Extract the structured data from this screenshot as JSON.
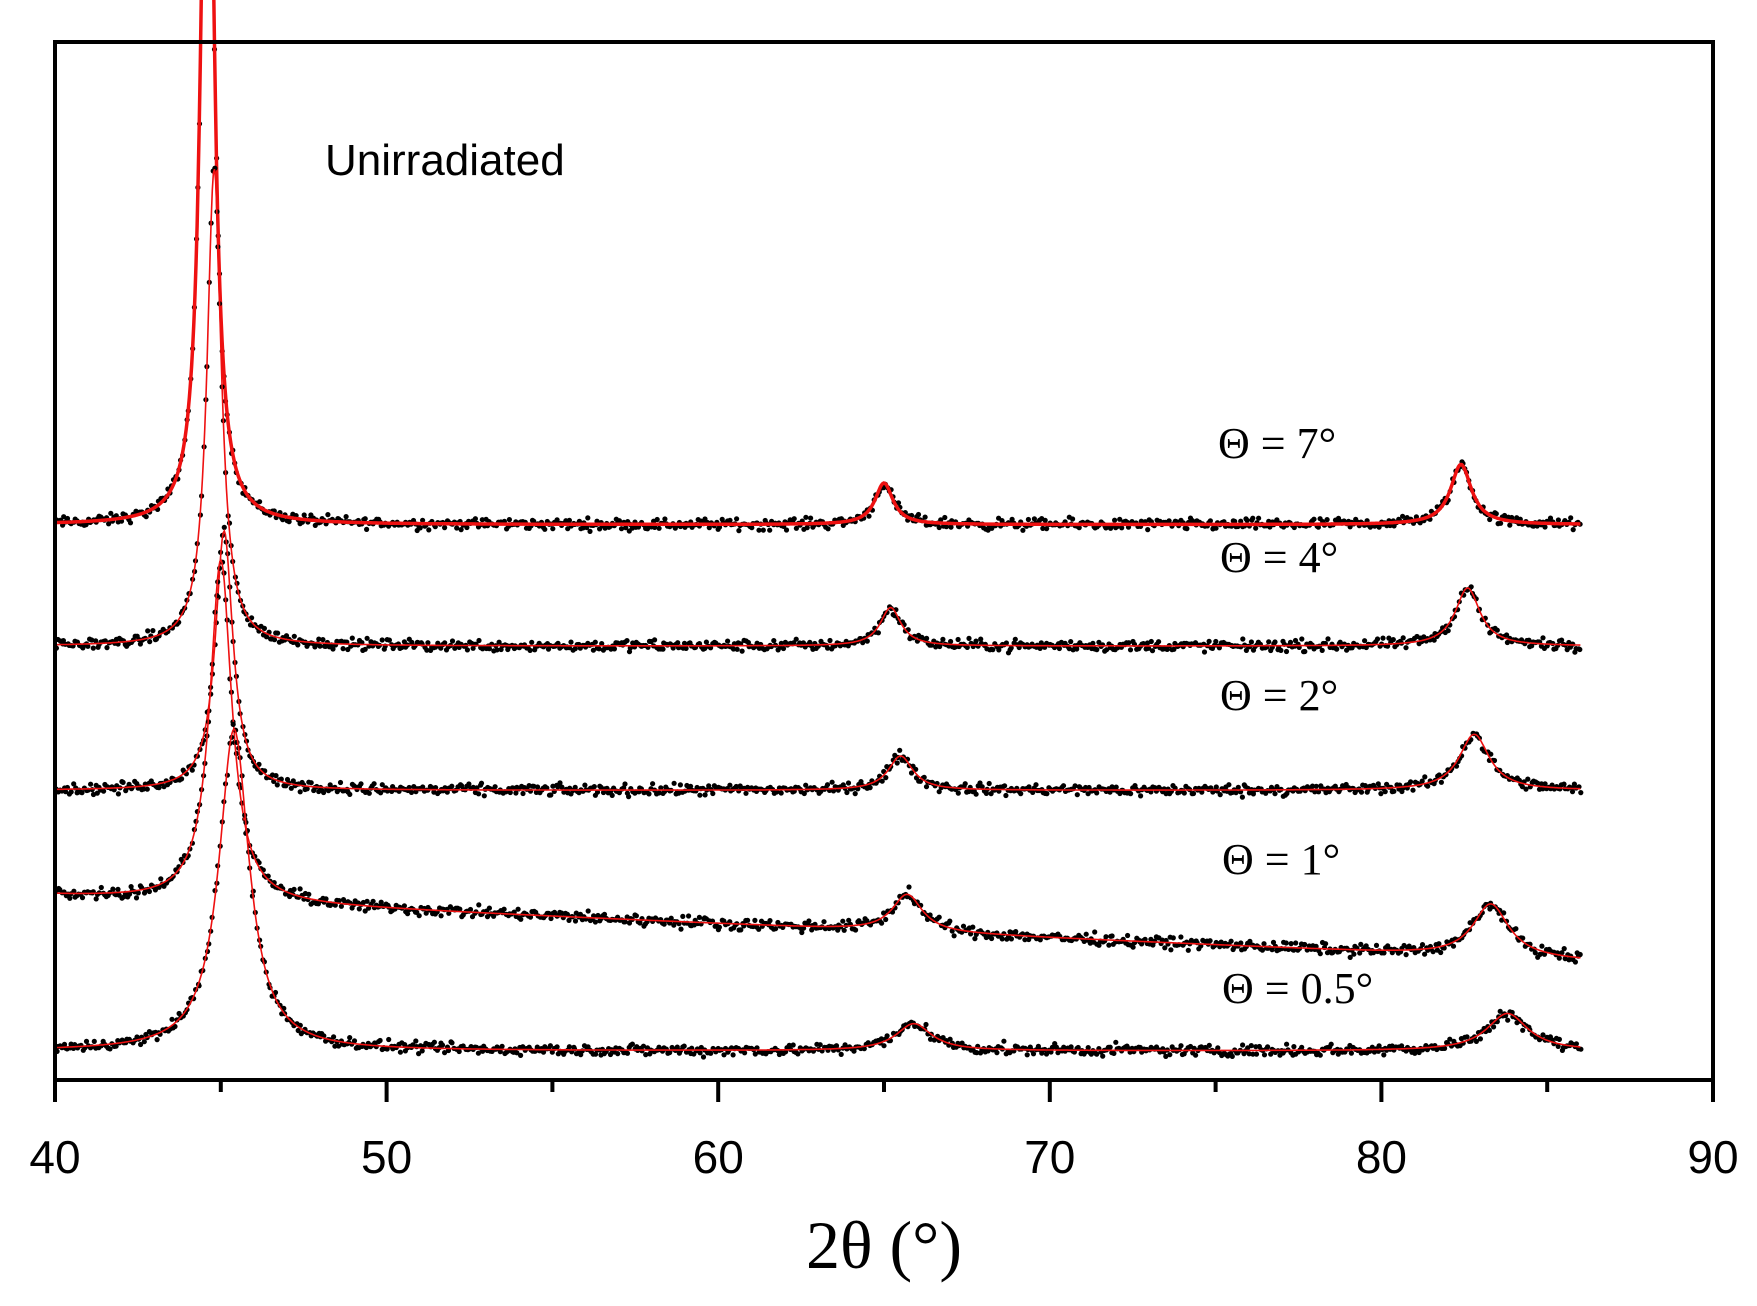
{
  "chart_data": {
    "type": "scatter",
    "title": "",
    "xlabel": "2θ (°)",
    "ylabel": "",
    "xlim": [
      40,
      90
    ],
    "x_ticks": [
      40,
      50,
      60,
      70,
      80,
      90
    ],
    "x_minor_ticks": [
      45,
      55,
      65,
      75,
      85
    ],
    "annotation": "Unirradiated",
    "colors": {
      "fit": "#ee1111",
      "points": "#000000",
      "axis": "#000000"
    },
    "series": [
      {
        "name": "Θ = 7°",
        "baseline": 0.535,
        "peaks": [
          {
            "center": 44.6,
            "height": 0.88,
            "width": 0.22
          },
          {
            "center": 65.0,
            "height": 0.04,
            "width": 0.33
          },
          {
            "center": 82.4,
            "height": 0.058,
            "width": 0.38
          }
        ],
        "x_end": 86
      },
      {
        "name": "Θ = 4°",
        "baseline": 0.418,
        "peaks": [
          {
            "center": 44.8,
            "height": 0.46,
            "width": 0.26
          },
          {
            "center": 65.2,
            "height": 0.037,
            "width": 0.38
          },
          {
            "center": 82.6,
            "height": 0.056,
            "width": 0.45
          }
        ],
        "x_end": 86
      },
      {
        "name": "Θ = 2°",
        "baseline": 0.279,
        "peaks": [
          {
            "center": 45.1,
            "height": 0.25,
            "width": 0.32
          },
          {
            "center": 65.5,
            "height": 0.033,
            "width": 0.45
          },
          {
            "center": 82.8,
            "height": 0.054,
            "width": 0.55
          }
        ],
        "x_end": 86
      },
      {
        "name": "Θ = 1°",
        "baseline": 0.124,
        "baseline_drift": 0.042,
        "peaks": [
          {
            "center": 45.0,
            "height": 0.33,
            "width": 0.4
          },
          {
            "center": 65.7,
            "height": 0.036,
            "width": 0.55
          },
          {
            "center": 83.3,
            "height": 0.051,
            "width": 0.65
          }
        ],
        "x_end": 86
      },
      {
        "name": "Θ = 0.5°",
        "baseline": 0.028,
        "peaks": [
          {
            "center": 45.4,
            "height": 0.31,
            "width": 0.55
          },
          {
            "center": 65.9,
            "height": 0.026,
            "width": 0.65
          },
          {
            "center": 83.8,
            "height": 0.036,
            "width": 0.75
          }
        ],
        "x_end": 86
      }
    ]
  }
}
